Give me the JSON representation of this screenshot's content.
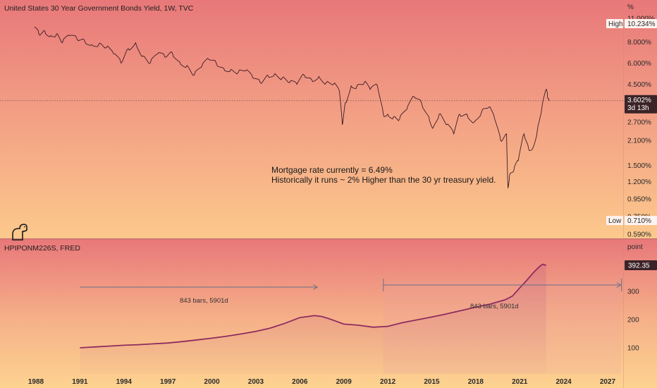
{
  "chart_data": [
    {
      "type": "line",
      "title": "United States 30 Year Government Bonds Yield, 1W, TVC",
      "unit_label": "%",
      "y_scale": "log",
      "ylim": [
        0.55,
        11.8
      ],
      "y_ticks": [
        "11.000%",
        "8.000%",
        "6.000%",
        "4.500%",
        "3.602%",
        "2.700%",
        "2.100%",
        "1.500%",
        "1.200%",
        "0.950%",
        "0.750%",
        "0.590%"
      ],
      "y_tick_values": [
        11.0,
        8.0,
        6.0,
        4.5,
        3.602,
        2.7,
        2.1,
        1.5,
        1.2,
        0.95,
        0.75,
        0.59
      ],
      "high": {
        "label": "High",
        "value_text": "10.234%",
        "value": 10.234
      },
      "low": {
        "label": "Low",
        "value_text": "0.710%",
        "value": 0.71
      },
      "last": {
        "value_text": "3.602%",
        "countdown": "3d 13h",
        "value": 3.602
      },
      "annotation": [
        "Mortgage rate currently = 6.49%",
        "Historically it runs ~ 2% Higher than the 30 yr treasury yield."
      ],
      "series": [
        {
          "x": [
            1987.9,
            1988.2,
            1988.6,
            1989.0,
            1989.4,
            1989.8,
            1990.3,
            1990.8,
            1991.3,
            1991.8,
            1992.3,
            1992.8,
            1993.3,
            1993.8,
            1994.3,
            1994.8,
            1995.3,
            1995.8,
            1996.3,
            1996.8,
            1997.3,
            1997.8,
            1998.3,
            1998.8,
            1999.3,
            1999.8,
            2000.3,
            2000.8,
            2001.3,
            2001.8,
            2002.3,
            2002.8,
            2003.3,
            2003.8,
            2004.3,
            2004.8,
            2005.3,
            2005.8,
            2006.3,
            2006.8,
            2007.3,
            2007.8,
            2008.3,
            2008.7,
            2008.9,
            2009.1,
            2009.5,
            2009.9,
            2010.4,
            2010.8,
            2011.3,
            2011.7,
            2012.0,
            2012.4,
            2012.8,
            2013.3,
            2013.8,
            2014.3,
            2014.8,
            2015.1,
            2015.5,
            2016.0,
            2016.5,
            2016.9,
            2017.4,
            2017.9,
            2018.4,
            2018.9,
            2019.3,
            2019.7,
            2020.1,
            2020.2,
            2020.3,
            2020.6,
            2020.9,
            2021.3,
            2021.6,
            2021.9,
            2022.2,
            2022.5,
            2022.8,
            2022.9,
            2023.0
          ],
          "y": [
            9.8,
            8.9,
            9.3,
            8.7,
            8.9,
            7.9,
            8.7,
            8.3,
            8.2,
            7.7,
            7.8,
            7.4,
            6.8,
            6.0,
            7.3,
            7.9,
            6.6,
            6.0,
            6.8,
            6.5,
            6.9,
            6.1,
            5.8,
            5.1,
            5.7,
            6.3,
            6.0,
            5.6,
            5.5,
            5.3,
            5.4,
            4.9,
            4.6,
            5.1,
            5.2,
            4.9,
            4.6,
            4.5,
            5.1,
            4.8,
            5.0,
            4.6,
            4.5,
            4.1,
            2.6,
            3.5,
            4.4,
            4.4,
            4.6,
            4.2,
            4.4,
            3.0,
            3.0,
            2.9,
            2.8,
            3.2,
            3.8,
            3.5,
            2.9,
            2.5,
            3.0,
            2.6,
            2.3,
            3.0,
            3.0,
            2.7,
            3.1,
            3.3,
            2.8,
            2.1,
            2.3,
            1.1,
            1.3,
            1.4,
            1.6,
            2.3,
            1.9,
            1.9,
            2.4,
            3.2,
            4.2,
            3.8,
            3.6
          ]
        }
      ]
    },
    {
      "type": "area",
      "title": "HPIPONM226S, FRED",
      "unit_label": "point",
      "ylim": [
        0,
        420
      ],
      "y_ticks": [
        "300",
        "200",
        "100"
      ],
      "y_tick_values": [
        300,
        200,
        100
      ],
      "last": {
        "value_text": "392.35",
        "value": 392.35
      },
      "x_ticks": [
        "1988",
        "1991",
        "1994",
        "1997",
        "2000",
        "2003",
        "2006",
        "2009",
        "2012",
        "2015",
        "2018",
        "2021",
        "2024",
        "2027"
      ],
      "x_tick_values": [
        1988,
        1991,
        1994,
        1997,
        2000,
        2003,
        2006,
        2009,
        2012,
        2015,
        2018,
        2021,
        2024,
        2027
      ],
      "measures": [
        {
          "label": "843 bars, 5901d",
          "x_from": 1991.0,
          "x_to": 2007.2
        },
        {
          "label": "843 bars, 5901d",
          "x_from": 2011.7,
          "x_to": 2027.9
        }
      ],
      "series": [
        {
          "x": [
            1991.0,
            1992.0,
            1993.0,
            1994.0,
            1995.0,
            1996.0,
            1997.0,
            1998.0,
            1999.0,
            2000.0,
            2001.0,
            2002.0,
            2003.0,
            2004.0,
            2005.0,
            2006.0,
            2007.0,
            2007.5,
            2008.0,
            2009.0,
            2010.0,
            2011.0,
            2012.0,
            2013.0,
            2014.0,
            2015.0,
            2016.0,
            2017.0,
            2018.0,
            2019.0,
            2020.0,
            2020.5,
            2021.0,
            2021.5,
            2022.0,
            2022.4,
            2022.6,
            2022.8
          ],
          "y": [
            100,
            103,
            106,
            109,
            111,
            114,
            117,
            122,
            128,
            134,
            141,
            149,
            158,
            170,
            187,
            207,
            214,
            211,
            203,
            184,
            180,
            173,
            176,
            189,
            199,
            209,
            220,
            232,
            244,
            255,
            270,
            283,
            312,
            340,
            370,
            390,
            396,
            392.35
          ]
        }
      ]
    }
  ]
}
